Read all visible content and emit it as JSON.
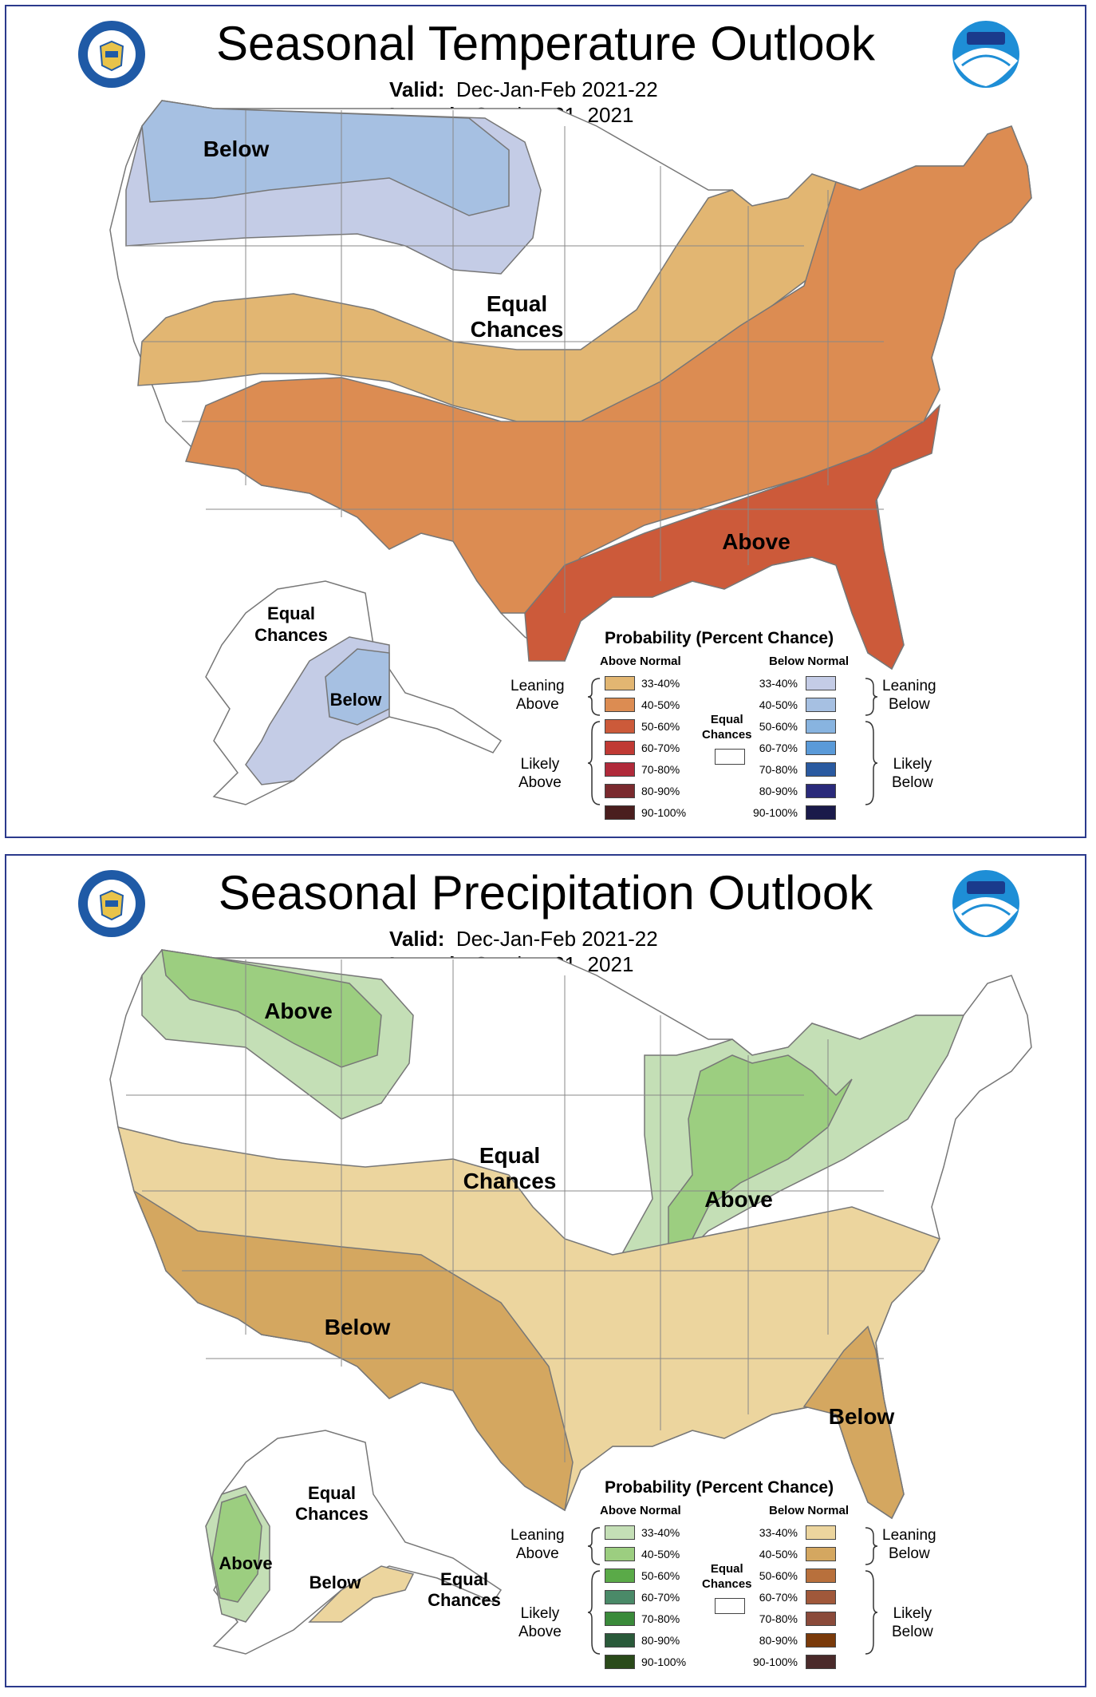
{
  "temp": {
    "title": "Seasonal Temperature Outlook",
    "valid_label": "Valid:",
    "valid_value": "Dec-Jan-Feb 2021-22",
    "issued_label": "Issued:",
    "issued_value": "October 21, 2021",
    "map_labels": {
      "below_nw": "Below",
      "equal_1": "Equal",
      "equal_2": "Chances",
      "above_se": "Above",
      "ak_equal_1": "Equal",
      "ak_equal_2": "Chances",
      "ak_below": "Below"
    },
    "colors": {
      "lean_above": "#e2b672",
      "above_4050": "#dc8c52",
      "above_5060": "#cc5a3a",
      "lean_below": "#c4cce6",
      "below_4050": "#a6c0e2",
      "border": "#888888"
    },
    "legend": {
      "title": "Probability (Percent Chance)",
      "left_head": "Above Normal",
      "right_head": "Below Normal",
      "equal_1": "Equal",
      "equal_2": "Chances",
      "left_leaning_1": "Leaning",
      "left_leaning_2": "Above",
      "left_likely_1": "Likely",
      "left_likely_2": "Above",
      "right_leaning_1": "Leaning",
      "right_leaning_2": "Below",
      "right_likely_1": "Likely",
      "right_likely_2": "Below",
      "left": [
        {
          "pct": "33-40%",
          "color": "#e2b672"
        },
        {
          "pct": "40-50%",
          "color": "#dc8c52"
        },
        {
          "pct": "50-60%",
          "color": "#cc5a3a"
        },
        {
          "pct": "60-70%",
          "color": "#c03a34"
        },
        {
          "pct": "70-80%",
          "color": "#b02a3a"
        },
        {
          "pct": "80-90%",
          "color": "#7a2a2e"
        },
        {
          "pct": "90-100%",
          "color": "#4a1e1e"
        }
      ],
      "right": [
        {
          "pct": "33-40%",
          "color": "#c4cce6"
        },
        {
          "pct": "40-50%",
          "color": "#a6c0e2"
        },
        {
          "pct": "50-60%",
          "color": "#88b4e0"
        },
        {
          "pct": "60-70%",
          "color": "#5a9ad8"
        },
        {
          "pct": "70-80%",
          "color": "#2a5aa0"
        },
        {
          "pct": "80-90%",
          "color": "#2a2a7a"
        },
        {
          "pct": "90-100%",
          "color": "#1a1a4a"
        }
      ]
    }
  },
  "precip": {
    "title": "Seasonal Precipitation Outlook",
    "valid_label": "Valid:",
    "valid_value": "Dec-Jan-Feb 2021-22",
    "issued_label": "Issued:",
    "issued_value": "October 21, 2021",
    "map_labels": {
      "above_nw": "Above",
      "equal_1": "Equal",
      "equal_2": "Chances",
      "above_ov": "Above",
      "below_sw": "Below",
      "below_se": "Below",
      "ak_equal_1": "Equal",
      "ak_equal_2": "Chances",
      "ak_above": "Above",
      "ak_below": "Below",
      "ak_equal2_1": "Equal",
      "ak_equal2_2": "Chances"
    },
    "colors": {
      "lean_above": "#c4dfb6",
      "above_4050": "#9cce80",
      "lean_below": "#ecd59e",
      "below_4050": "#d4a760",
      "border": "#888888"
    },
    "legend": {
      "title": "Probability (Percent Chance)",
      "left_head": "Above Normal",
      "right_head": "Below Normal",
      "equal_1": "Equal",
      "equal_2": "Chances",
      "left_leaning_1": "Leaning",
      "left_leaning_2": "Above",
      "left_likely_1": "Likely",
      "left_likely_2": "Above",
      "right_leaning_1": "Leaning",
      "right_leaning_2": "Below",
      "right_likely_1": "Likely",
      "right_likely_2": "Below",
      "left": [
        {
          "pct": "33-40%",
          "color": "#c4dfb6"
        },
        {
          "pct": "40-50%",
          "color": "#9cce80"
        },
        {
          "pct": "50-60%",
          "color": "#5aaa48"
        },
        {
          "pct": "60-70%",
          "color": "#4a8a68"
        },
        {
          "pct": "70-80%",
          "color": "#3a8a3a"
        },
        {
          "pct": "80-90%",
          "color": "#2a5a3a"
        },
        {
          "pct": "90-100%",
          "color": "#2a4a1a"
        }
      ],
      "right": [
        {
          "pct": "33-40%",
          "color": "#ecd59e"
        },
        {
          "pct": "40-50%",
          "color": "#d4a760"
        },
        {
          "pct": "50-60%",
          "color": "#b8703c"
        },
        {
          "pct": "60-70%",
          "color": "#a0583a"
        },
        {
          "pct": "70-80%",
          "color": "#8a4a3a"
        },
        {
          "pct": "80-90%",
          "color": "#7a3a0a"
        },
        {
          "pct": "90-100%",
          "color": "#4a2a2a"
        }
      ]
    }
  }
}
